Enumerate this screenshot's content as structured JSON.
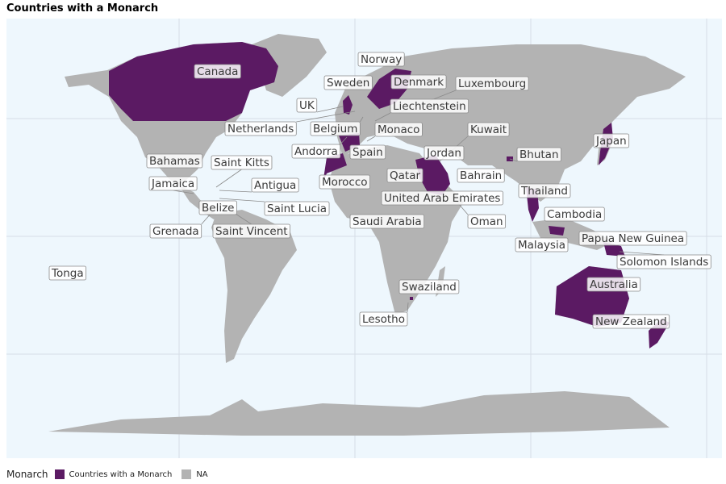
{
  "title": "Countries with a Monarch",
  "colors": {
    "ocean": "#eef7fd",
    "land": "#b3b3b3",
    "monarch": "#5b1a63",
    "grid": "#d6dde6"
  },
  "legend": {
    "title": "Monarch",
    "items": [
      {
        "label": "Countries with a Monarch",
        "color": "#5b1a63"
      },
      {
        "label": "NA",
        "color": "#b3b3b3"
      }
    ]
  },
  "countries": [
    "Canada",
    "Norway",
    "Sweden",
    "Denmark",
    "Luxembourg",
    "UK",
    "Liechtenstein",
    "Netherlands",
    "Belgium",
    "Monaco",
    "Kuwait",
    "Andorra",
    "Spain",
    "Jordan",
    "Bhutan",
    "Japan",
    "Bahamas",
    "Saint Kitts",
    "Qatar",
    "Bahrain",
    "Jamaica",
    "Antigua",
    "Morocco",
    "Thailand",
    "United Arab Emirates",
    "Belize",
    "Saint Lucia",
    "Cambodia",
    "Saudi Arabia",
    "Oman",
    "Grenada",
    "Saint Vincent",
    "Papua New Guinea",
    "Malaysia",
    "Solomon Islands",
    "Tonga",
    "Australia",
    "Swaziland",
    "Lesotho",
    "New Zealand"
  ]
}
